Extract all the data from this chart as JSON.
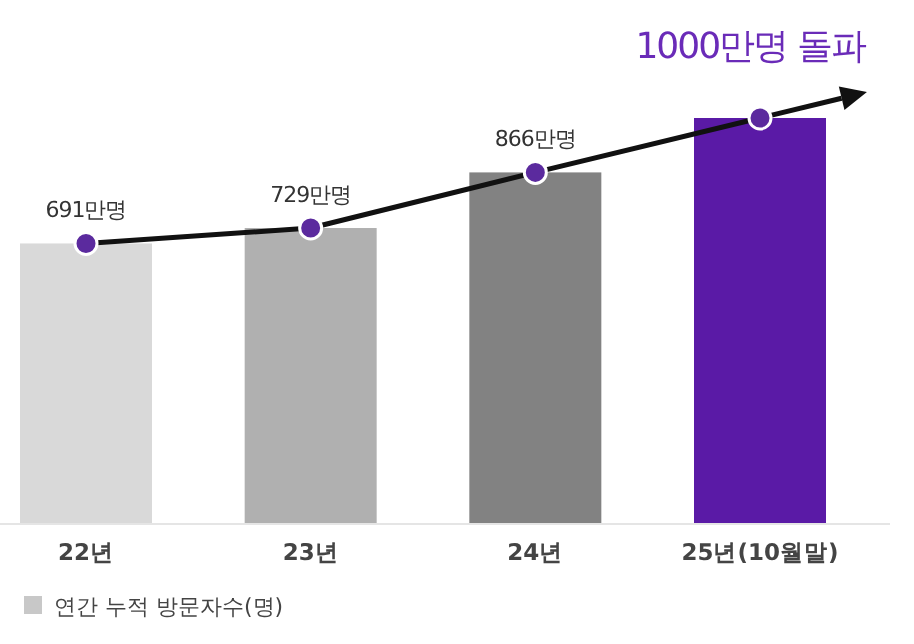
{
  "chart_data": {
    "type": "bar",
    "categories": [
      "22년",
      "23년",
      "24년",
      "25년(10월말)"
    ],
    "series": [
      {
        "name": "연간 누적 방문자수(명)",
        "color": "#c8c8c8",
        "colors": [
          "#d9d9d9",
          "#b0b0b0",
          "#828282",
          "#5a1aa6"
        ],
        "values": [
          691,
          729,
          866,
          1000
        ]
      },
      {
        "type": "line",
        "color": "#111111",
        "colors": [
          "#5b2a9e",
          "#5b2a9e",
          "#5b2a9e",
          "#5b2a9e"
        ],
        "marker": "circle",
        "values": [
          691,
          729,
          866,
          1000
        ],
        "value_labels": [
          "691만명",
          "729만명",
          "866만명",
          null
        ]
      }
    ],
    "annotations": [
      {
        "text": "1000만명 돌파",
        "x": "25년(10월말)",
        "y": 1000
      }
    ],
    "legend": "bottom left"
  }
}
